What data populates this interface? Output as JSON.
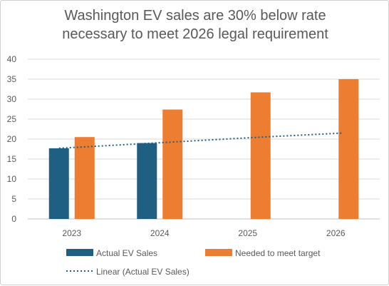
{
  "chart_data": {
    "type": "bar",
    "title_line1": "Washington EV sales are 30% below rate",
    "title_line2": "necessary to meet 2026 legal requirement",
    "categories": [
      "2023",
      "2024",
      "2025",
      "2026"
    ],
    "series": [
      {
        "name": "Actual EV Sales",
        "values": [
          17.7,
          19.0,
          null,
          null
        ],
        "color": "#1f5f82"
      },
      {
        "name": "Needed to meet target",
        "values": [
          20.5,
          27.4,
          31.7,
          35.0
        ],
        "color": "#ed7d31"
      }
    ],
    "trendline": {
      "name": "Linear (Actual EV Sales)",
      "values": [
        17.7,
        19.0,
        20.3,
        21.5
      ],
      "color": "#1f5f82",
      "style": "dotted"
    },
    "ylim": [
      0,
      40
    ],
    "yticks": [
      0,
      5,
      10,
      15,
      20,
      25,
      30,
      35,
      40
    ],
    "grid": true,
    "legend_position": "bottom"
  }
}
